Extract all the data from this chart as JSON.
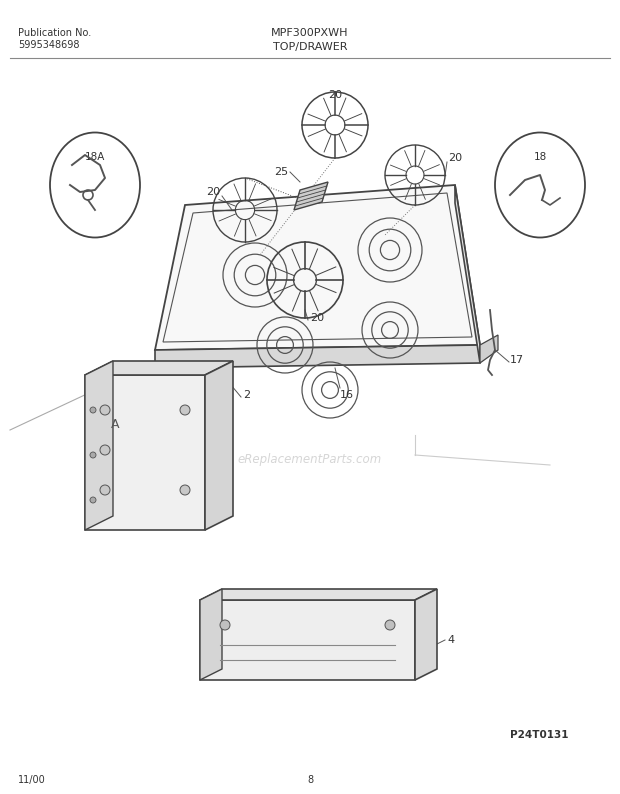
{
  "title_model": "MPF300PXWH",
  "title_section": "TOP/DRAWER",
  "pub_no_label": "Publication No.",
  "pub_no": "5995348698",
  "watermark": "eReplacementParts.com",
  "page_date": "11/00",
  "page_num": "8",
  "img_id": "P24T0131",
  "bg_color": "#ffffff",
  "text_color": "#333333",
  "line_color": "#555555"
}
